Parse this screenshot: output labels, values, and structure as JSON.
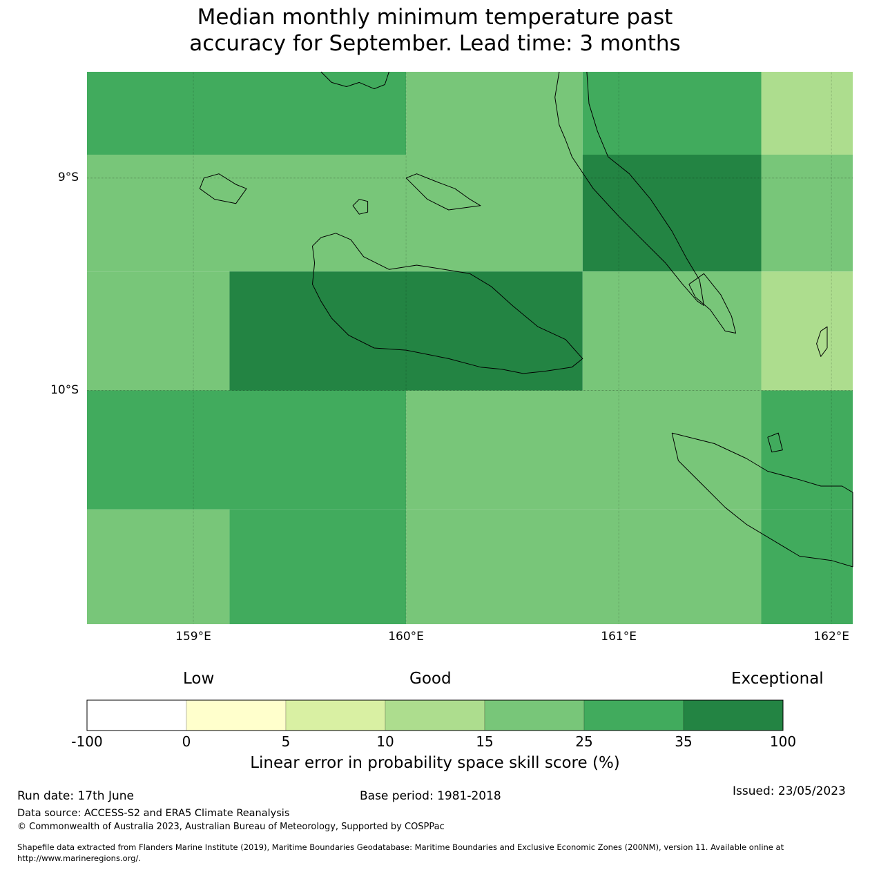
{
  "title_line1": "Median monthly minimum temperature past",
  "title_line2": "accuracy for September. Lead time: 3 months",
  "map": {
    "lon_range": [
      158.5,
      162.1
    ],
    "lat_range": [
      -11.1,
      -8.5
    ],
    "lat_ticks": [
      {
        "value": -9,
        "label": "9°S"
      },
      {
        "value": -10,
        "label": "10°S"
      }
    ],
    "lon_ticks": [
      {
        "value": 159,
        "label": "159°E"
      },
      {
        "value": 160,
        "label": "160°E"
      },
      {
        "value": 161,
        "label": "161°E"
      },
      {
        "value": 162,
        "label": "162°E"
      }
    ],
    "cells": [
      {
        "lon": [
          158.5,
          160.0
        ],
        "lat": [
          -8.89,
          -8.5
        ],
        "cls": "25-35"
      },
      {
        "lon": [
          160.0,
          160.83
        ],
        "lat": [
          -8.89,
          -8.5
        ],
        "cls": "15-25"
      },
      {
        "lon": [
          160.83,
          161.67
        ],
        "lat": [
          -8.89,
          -8.5
        ],
        "cls": "25-35"
      },
      {
        "lon": [
          161.67,
          162.1
        ],
        "lat": [
          -8.89,
          -8.5
        ],
        "cls": "10-15"
      },
      {
        "lon": [
          158.5,
          160.83
        ],
        "lat": [
          -9.44,
          -8.89
        ],
        "cls": "15-25"
      },
      {
        "lon": [
          160.83,
          161.67
        ],
        "lat": [
          -9.44,
          -8.89
        ],
        "cls": "35-100"
      },
      {
        "lon": [
          161.67,
          162.1
        ],
        "lat": [
          -9.44,
          -8.89
        ],
        "cls": "15-25"
      },
      {
        "lon": [
          158.5,
          159.17
        ],
        "lat": [
          -10.0,
          -9.44
        ],
        "cls": "15-25"
      },
      {
        "lon": [
          159.17,
          160.83
        ],
        "lat": [
          -10.0,
          -9.44
        ],
        "cls": "35-100"
      },
      {
        "lon": [
          160.83,
          161.67
        ],
        "lat": [
          -10.0,
          -9.44
        ],
        "cls": "15-25"
      },
      {
        "lon": [
          161.67,
          162.1
        ],
        "lat": [
          -10.0,
          -9.44
        ],
        "cls": "10-15"
      },
      {
        "lon": [
          158.5,
          160.0
        ],
        "lat": [
          -10.56,
          -10.0
        ],
        "cls": "25-35"
      },
      {
        "lon": [
          160.0,
          161.67
        ],
        "lat": [
          -10.56,
          -10.0
        ],
        "cls": "15-25"
      },
      {
        "lon": [
          161.67,
          162.1
        ],
        "lat": [
          -10.56,
          -10.0
        ],
        "cls": "25-35"
      },
      {
        "lon": [
          158.5,
          159.17
        ],
        "lat": [
          -11.1,
          -10.56
        ],
        "cls": "15-25"
      },
      {
        "lon": [
          159.17,
          160.0
        ],
        "lat": [
          -11.1,
          -10.56
        ],
        "cls": "25-35"
      },
      {
        "lon": [
          160.0,
          161.67
        ],
        "lat": [
          -11.1,
          -10.56
        ],
        "cls": "15-25"
      },
      {
        "lon": [
          161.67,
          162.1
        ],
        "lat": [
          -11.1,
          -10.56
        ],
        "cls": "25-35"
      }
    ],
    "coastlines": [
      {
        "name": "guadalcanal-island",
        "pts": [
          [
            159.6,
            -9.28
          ],
          [
            159.67,
            -9.26
          ],
          [
            159.74,
            -9.29
          ],
          [
            159.8,
            -9.37
          ],
          [
            159.92,
            -9.43
          ],
          [
            160.05,
            -9.41
          ],
          [
            160.18,
            -9.43
          ],
          [
            160.3,
            -9.45
          ],
          [
            160.4,
            -9.51
          ],
          [
            160.5,
            -9.6
          ],
          [
            160.62,
            -9.7
          ],
          [
            160.75,
            -9.76
          ],
          [
            160.83,
            -9.85
          ],
          [
            160.78,
            -9.89
          ],
          [
            160.65,
            -9.91
          ],
          [
            160.55,
            -9.92
          ],
          [
            160.45,
            -9.9
          ],
          [
            160.35,
            -9.89
          ],
          [
            160.2,
            -9.85
          ],
          [
            160.0,
            -9.81
          ],
          [
            159.85,
            -9.8
          ],
          [
            159.73,
            -9.74
          ],
          [
            159.65,
            -9.66
          ],
          [
            159.6,
            -9.58
          ],
          [
            159.56,
            -9.5
          ],
          [
            159.57,
            -9.4
          ],
          [
            159.56,
            -9.32
          ],
          [
            159.6,
            -9.28
          ]
        ]
      },
      {
        "name": "malaita-island",
        "pts": [
          [
            160.72,
            -8.5
          ],
          [
            160.7,
            -8.62
          ],
          [
            160.72,
            -8.75
          ],
          [
            160.75,
            -8.82
          ],
          [
            160.78,
            -8.9
          ],
          [
            160.88,
            -9.05
          ],
          [
            161.0,
            -9.18
          ],
          [
            161.12,
            -9.3
          ],
          [
            161.22,
            -9.4
          ],
          [
            161.3,
            -9.5
          ],
          [
            161.37,
            -9.58
          ],
          [
            161.4,
            -9.6
          ],
          [
            161.38,
            -9.48
          ],
          [
            161.32,
            -9.38
          ],
          [
            161.25,
            -9.25
          ],
          [
            161.15,
            -9.1
          ],
          [
            161.05,
            -8.98
          ],
          [
            160.95,
            -8.9
          ],
          [
            160.9,
            -8.78
          ],
          [
            160.86,
            -8.65
          ],
          [
            160.85,
            -8.5
          ]
        ]
      },
      {
        "name": "small-malaita",
        "pts": [
          [
            161.33,
            -9.5
          ],
          [
            161.4,
            -9.45
          ],
          [
            161.48,
            -9.55
          ],
          [
            161.53,
            -9.65
          ],
          [
            161.55,
            -9.73
          ],
          [
            161.5,
            -9.72
          ],
          [
            161.43,
            -9.62
          ],
          [
            161.36,
            -9.56
          ],
          [
            161.33,
            -9.5
          ]
        ]
      },
      {
        "name": "makira-island",
        "pts": [
          [
            161.25,
            -10.2
          ],
          [
            161.45,
            -10.25
          ],
          [
            161.6,
            -10.32
          ],
          [
            161.7,
            -10.38
          ],
          [
            161.85,
            -10.42
          ],
          [
            161.95,
            -10.45
          ],
          [
            162.05,
            -10.45
          ],
          [
            162.1,
            -10.48
          ],
          [
            162.1,
            -10.83
          ],
          [
            162.0,
            -10.8
          ],
          [
            161.85,
            -10.78
          ],
          [
            161.75,
            -10.72
          ],
          [
            161.6,
            -10.63
          ],
          [
            161.5,
            -10.55
          ],
          [
            161.4,
            -10.45
          ],
          [
            161.28,
            -10.33
          ],
          [
            161.25,
            -10.2
          ]
        ]
      },
      {
        "name": "florida-islands",
        "pts": [
          [
            160.0,
            -9.0
          ],
          [
            160.05,
            -8.98
          ],
          [
            160.15,
            -9.02
          ],
          [
            160.23,
            -9.05
          ],
          [
            160.3,
            -9.1
          ],
          [
            160.35,
            -9.13
          ],
          [
            160.2,
            -9.15
          ],
          [
            160.1,
            -9.1
          ],
          [
            160.05,
            -9.05
          ],
          [
            160.0,
            -9.0
          ]
        ]
      },
      {
        "name": "savo-island",
        "pts": [
          [
            159.78,
            -9.1
          ],
          [
            159.82,
            -9.11
          ],
          [
            159.82,
            -9.16
          ],
          [
            159.78,
            -9.17
          ],
          [
            159.75,
            -9.13
          ],
          [
            159.78,
            -9.1
          ]
        ]
      },
      {
        "name": "russell-islands",
        "pts": [
          [
            159.05,
            -9.0
          ],
          [
            159.12,
            -8.98
          ],
          [
            159.2,
            -9.03
          ],
          [
            159.25,
            -9.05
          ],
          [
            159.2,
            -9.12
          ],
          [
            159.1,
            -9.1
          ],
          [
            159.03,
            -9.05
          ],
          [
            159.05,
            -9.0
          ]
        ]
      },
      {
        "name": "northern-coast",
        "pts": [
          [
            159.6,
            -8.5
          ],
          [
            159.65,
            -8.55
          ],
          [
            159.72,
            -8.57
          ],
          [
            159.78,
            -8.55
          ],
          [
            159.85,
            -8.58
          ],
          [
            159.9,
            -8.56
          ],
          [
            159.92,
            -8.5
          ]
        ]
      },
      {
        "name": "ulawa-island",
        "pts": [
          [
            161.95,
            -9.72
          ],
          [
            161.98,
            -9.7
          ],
          [
            161.98,
            -9.8
          ],
          [
            161.95,
            -9.84
          ],
          [
            161.93,
            -9.78
          ],
          [
            161.95,
            -9.72
          ]
        ]
      },
      {
        "name": "ugi-island",
        "pts": [
          [
            161.7,
            -10.22
          ],
          [
            161.75,
            -10.2
          ],
          [
            161.77,
            -10.28
          ],
          [
            161.72,
            -10.29
          ],
          [
            161.7,
            -10.22
          ]
        ]
      }
    ]
  },
  "colorbar": {
    "head_low": "Low",
    "head_good": "Good",
    "head_exceptional": "Exceptional",
    "ticks": [
      "-100",
      "0",
      "5",
      "10",
      "15",
      "25",
      "35",
      "100"
    ],
    "colors": [
      "#ffffff",
      "#ffffcc",
      "#d9f0a3",
      "#addd8e",
      "#78c679",
      "#41ab5d",
      "#238443"
    ],
    "label": "Linear error in probability space skill score (%)"
  },
  "class_colors": {
    "10-15": "#addd8e",
    "15-25": "#78c679",
    "25-35": "#41ab5d",
    "35-100": "#238443"
  },
  "footer": {
    "run_date": "Run date: 17th June",
    "base_period": "Base period: 1981-2018",
    "issued": "Issued: 23/05/2023",
    "data_source": "Data source: ACCESS-S2 and ERA5 Climate Reanalysis",
    "copyright": "© Commonwealth of Australia 2023, Australian Bureau of Meteorology, Supported by COSPPac",
    "shapefile_line1": "Shapefile data extracted from Flanders Marine Institute (2019), Maritime Boundaries Geodatabase: Maritime Boundaries and Exclusive Economic Zones (200NM), version 11. Available online at",
    "shapefile_line2": "http://www.marineregions.org/."
  }
}
